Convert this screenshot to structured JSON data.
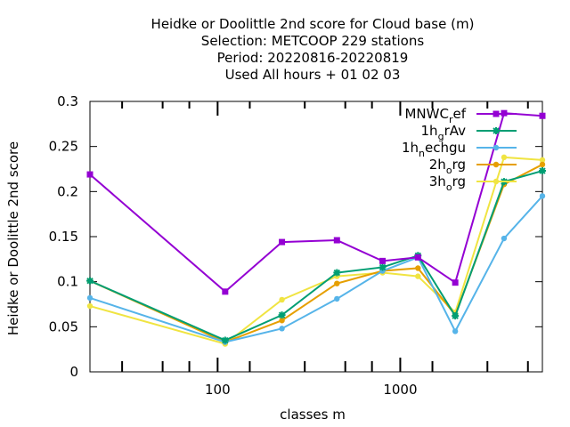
{
  "chart_data": {
    "type": "line",
    "title_lines": [
      "Heidke or Doolittle 2nd score  for Cloud base (m)",
      "Selection: METCOOP    229 stations",
      "Period: 20220816-20220819",
      "Used  All hours  + 01 02 03"
    ],
    "xlabel": "classes m",
    "ylabel": "Heidke or Doolittle 2nd score",
    "x_scale": "log",
    "xlim": [
      20,
      6000
    ],
    "ylim": [
      0,
      0.3
    ],
    "x_ticks": [
      "100",
      "1000"
    ],
    "y_ticks": [
      "0",
      "0.05",
      "0.1",
      "0.15",
      "0.2",
      "0.25",
      "0.3"
    ],
    "y_tick_values": [
      0,
      0.05,
      0.1,
      0.15,
      0.2,
      0.25,
      0.3
    ],
    "x_tick_values": [
      100,
      1000
    ],
    "x_minor_ticks": [
      30,
      50,
      70,
      150,
      300,
      500,
      700,
      1500,
      3000,
      5000
    ],
    "grid": false,
    "legend_position": "top-right",
    "x": [
      20,
      110,
      225,
      450,
      800,
      1250,
      2000,
      3700,
      6000
    ],
    "series": [
      {
        "name": "MNWC",
        "sub": "r",
        "suffix": "ef",
        "color": "#9400d3",
        "marker": "square",
        "values": [
          0.219,
          0.089,
          0.144,
          0.146,
          0.123,
          0.127,
          0.099,
          0.287,
          0.284
        ]
      },
      {
        "name": "1h",
        "sub": "g",
        "suffix": "rAv",
        "color": "#009e73",
        "marker": "star",
        "values": [
          0.101,
          0.035,
          0.063,
          0.11,
          0.116,
          0.129,
          0.062,
          0.211,
          0.223
        ]
      },
      {
        "name": "1h",
        "sub": "n",
        "suffix": "echgu",
        "color": "#56b4e9",
        "marker": "circle",
        "values": [
          0.082,
          0.033,
          0.048,
          0.081,
          0.112,
          0.127,
          0.045,
          0.148,
          0.195
        ]
      },
      {
        "name": "2h",
        "sub": "o",
        "suffix": "rg",
        "color": "#e69f00",
        "marker": "circle",
        "values": [
          0.101,
          0.033,
          0.057,
          0.098,
          0.112,
          0.115,
          0.063,
          0.208,
          0.23
        ]
      },
      {
        "name": "3h",
        "sub": "o",
        "suffix": "rg",
        "color": "#f0e442",
        "marker": "circle",
        "values": [
          0.073,
          0.031,
          0.08,
          0.106,
          0.11,
          0.106,
          0.066,
          0.238,
          0.235
        ]
      }
    ]
  }
}
